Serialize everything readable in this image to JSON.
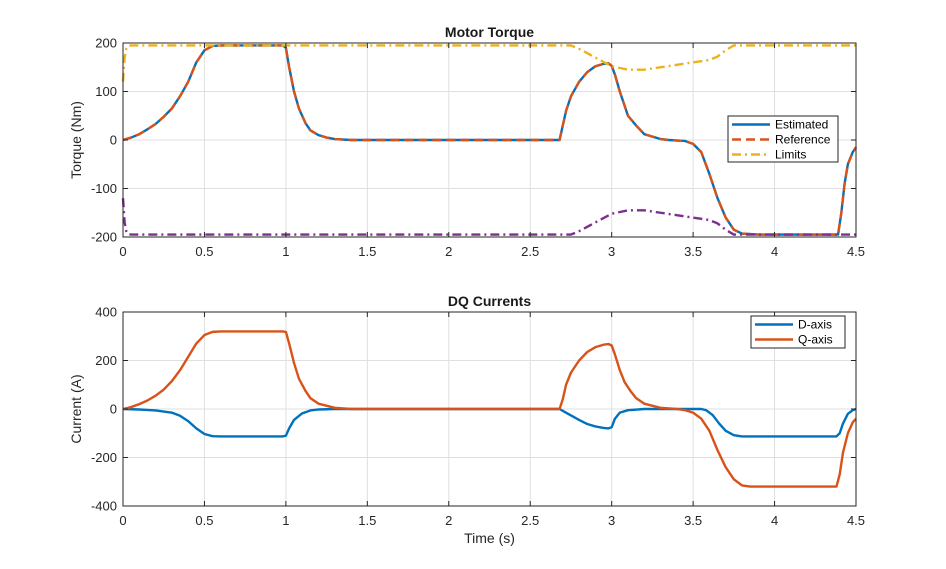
{
  "colors": {
    "estimated": "#0072BD",
    "reference": "#D95319",
    "limits": "#EDB120",
    "lower_limit": "#7E2F8E",
    "d_axis": "#0072BD",
    "q_axis": "#D95319",
    "grid": "#dfdfdf",
    "axes": "#262626"
  },
  "chart_data": [
    {
      "type": "line",
      "title": "Motor Torque",
      "xlabel": "",
      "ylabel": "Torque (Nm)",
      "xlim": [
        0,
        4.5
      ],
      "ylim": [
        -200,
        200
      ],
      "xticks": [
        0,
        0.5,
        1,
        1.5,
        2,
        2.5,
        3,
        3.5,
        4,
        4.5
      ],
      "xtick_labels": [
        "0",
        "0.5",
        "1",
        "1.5",
        "2",
        "2.5",
        "3",
        "3.5",
        "4",
        "4.5"
      ],
      "yticks": [
        -200,
        -100,
        0,
        100,
        200
      ],
      "ytick_labels": [
        "-200",
        "-100",
        "0",
        "100",
        "200"
      ],
      "grid": true,
      "legend_position": "right",
      "legend": [
        "Estimated",
        "Reference",
        "Limits"
      ],
      "series": [
        {
          "name": "Estimated",
          "style": "solid",
          "color_key": "estimated",
          "points": [
            [
              0,
              0
            ],
            [
              0.05,
              5
            ],
            [
              0.1,
              12
            ],
            [
              0.15,
              22
            ],
            [
              0.2,
              33
            ],
            [
              0.25,
              48
            ],
            [
              0.3,
              65
            ],
            [
              0.35,
              90
            ],
            [
              0.4,
              120
            ],
            [
              0.45,
              160
            ],
            [
              0.5,
              185
            ],
            [
              0.55,
              194
            ],
            [
              0.6,
              195
            ],
            [
              0.8,
              195
            ],
            [
              0.98,
              195
            ],
            [
              1.0,
              190
            ],
            [
              1.02,
              150
            ],
            [
              1.05,
              100
            ],
            [
              1.08,
              65
            ],
            [
              1.12,
              35
            ],
            [
              1.15,
              20
            ],
            [
              1.2,
              10
            ],
            [
              1.25,
              5
            ],
            [
              1.3,
              2
            ],
            [
              1.4,
              0
            ],
            [
              2.68,
              0
            ],
            [
              2.7,
              30
            ],
            [
              2.72,
              60
            ],
            [
              2.75,
              90
            ],
            [
              2.8,
              120
            ],
            [
              2.85,
              140
            ],
            [
              2.9,
              152
            ],
            [
              2.95,
              157
            ],
            [
              2.98,
              158
            ],
            [
              3.0,
              153
            ],
            [
              3.02,
              135
            ],
            [
              3.05,
              100
            ],
            [
              3.08,
              70
            ],
            [
              3.1,
              50
            ],
            [
              3.15,
              30
            ],
            [
              3.2,
              12
            ],
            [
              3.3,
              2
            ],
            [
              3.35,
              0
            ],
            [
              3.45,
              -2
            ],
            [
              3.5,
              -8
            ],
            [
              3.55,
              -25
            ],
            [
              3.6,
              -70
            ],
            [
              3.65,
              -120
            ],
            [
              3.7,
              -160
            ],
            [
              3.75,
              -185
            ],
            [
              3.8,
              -193
            ],
            [
              3.9,
              -195
            ],
            [
              4.39,
              -195
            ],
            [
              4.41,
              -150
            ],
            [
              4.43,
              -90
            ],
            [
              4.45,
              -50
            ],
            [
              4.48,
              -25
            ],
            [
              4.5,
              -15
            ]
          ]
        },
        {
          "name": "Reference",
          "style": "dashed",
          "color_key": "reference",
          "points": [
            [
              0,
              0
            ],
            [
              0.05,
              5
            ],
            [
              0.1,
              12
            ],
            [
              0.15,
              22
            ],
            [
              0.2,
              33
            ],
            [
              0.25,
              48
            ],
            [
              0.3,
              65
            ],
            [
              0.35,
              90
            ],
            [
              0.4,
              120
            ],
            [
              0.45,
              160
            ],
            [
              0.5,
              185
            ],
            [
              0.55,
              194
            ],
            [
              0.6,
              195
            ],
            [
              0.8,
              195
            ],
            [
              0.98,
              195
            ],
            [
              1.0,
              190
            ],
            [
              1.02,
              150
            ],
            [
              1.05,
              100
            ],
            [
              1.08,
              65
            ],
            [
              1.12,
              35
            ],
            [
              1.15,
              20
            ],
            [
              1.2,
              10
            ],
            [
              1.25,
              5
            ],
            [
              1.3,
              2
            ],
            [
              1.4,
              0
            ],
            [
              2.68,
              0
            ],
            [
              2.7,
              30
            ],
            [
              2.72,
              60
            ],
            [
              2.75,
              90
            ],
            [
              2.8,
              120
            ],
            [
              2.85,
              140
            ],
            [
              2.9,
              152
            ],
            [
              2.95,
              157
            ],
            [
              2.98,
              158
            ],
            [
              3.0,
              153
            ],
            [
              3.02,
              135
            ],
            [
              3.05,
              100
            ],
            [
              3.08,
              70
            ],
            [
              3.1,
              50
            ],
            [
              3.15,
              30
            ],
            [
              3.2,
              12
            ],
            [
              3.3,
              2
            ],
            [
              3.35,
              0
            ],
            [
              3.45,
              -2
            ],
            [
              3.5,
              -8
            ],
            [
              3.55,
              -25
            ],
            [
              3.6,
              -70
            ],
            [
              3.65,
              -120
            ],
            [
              3.7,
              -160
            ],
            [
              3.75,
              -185
            ],
            [
              3.8,
              -193
            ],
            [
              3.9,
              -195
            ],
            [
              4.39,
              -195
            ],
            [
              4.41,
              -150
            ],
            [
              4.43,
              -90
            ],
            [
              4.45,
              -50
            ],
            [
              4.48,
              -25
            ],
            [
              4.5,
              -15
            ]
          ]
        },
        {
          "name": "Limits",
          "style": "dashdot",
          "color_key": "limits",
          "points": [
            [
              0,
              120
            ],
            [
              0.01,
              170
            ],
            [
              0.02,
              188
            ],
            [
              0.03,
              194
            ],
            [
              0.05,
              195
            ],
            [
              2.75,
              195
            ],
            [
              2.8,
              188
            ],
            [
              2.9,
              170
            ],
            [
              3.0,
              152
            ],
            [
              3.1,
              145
            ],
            [
              3.2,
              145
            ],
            [
              3.3,
              150
            ],
            [
              3.4,
              155
            ],
            [
              3.5,
              160
            ],
            [
              3.6,
              165
            ],
            [
              3.65,
              172
            ],
            [
              3.7,
              185
            ],
            [
              3.75,
              195
            ],
            [
              4.5,
              195
            ]
          ]
        },
        {
          "name": "",
          "style": "dashdot",
          "color_key": "lower_limit",
          "points": [
            [
              0,
              -120
            ],
            [
              0.01,
              -170
            ],
            [
              0.02,
              -188
            ],
            [
              0.03,
              -194
            ],
            [
              0.05,
              -195
            ],
            [
              2.75,
              -195
            ],
            [
              2.8,
              -188
            ],
            [
              2.9,
              -170
            ],
            [
              3.0,
              -152
            ],
            [
              3.1,
              -145
            ],
            [
              3.2,
              -145
            ],
            [
              3.3,
              -150
            ],
            [
              3.4,
              -155
            ],
            [
              3.5,
              -160
            ],
            [
              3.6,
              -165
            ],
            [
              3.65,
              -172
            ],
            [
              3.7,
              -185
            ],
            [
              3.75,
              -195
            ],
            [
              4.5,
              -195
            ]
          ]
        }
      ]
    },
    {
      "type": "line",
      "title": "DQ Currents",
      "xlabel": "Time (s)",
      "ylabel": "Current (A)",
      "xlim": [
        0,
        4.5
      ],
      "ylim": [
        -400,
        400
      ],
      "xticks": [
        0,
        0.5,
        1,
        1.5,
        2,
        2.5,
        3,
        3.5,
        4,
        4.5
      ],
      "xtick_labels": [
        "0",
        "0.5",
        "1",
        "1.5",
        "2",
        "2.5",
        "3",
        "3.5",
        "4",
        "4.5"
      ],
      "yticks": [
        -400,
        -200,
        0,
        200,
        400
      ],
      "ytick_labels": [
        "-400",
        "-200",
        "0",
        "200",
        "400"
      ],
      "grid": true,
      "legend_position": "top-right",
      "legend": [
        "D-axis",
        "Q-axis"
      ],
      "series": [
        {
          "name": "D-axis",
          "style": "solid",
          "color_key": "d_axis",
          "points": [
            [
              0,
              0
            ],
            [
              0.1,
              -2
            ],
            [
              0.2,
              -6
            ],
            [
              0.3,
              -15
            ],
            [
              0.35,
              -28
            ],
            [
              0.4,
              -50
            ],
            [
              0.45,
              -80
            ],
            [
              0.5,
              -103
            ],
            [
              0.55,
              -112
            ],
            [
              0.6,
              -113
            ],
            [
              0.98,
              -113
            ],
            [
              1.0,
              -110
            ],
            [
              1.02,
              -80
            ],
            [
              1.05,
              -45
            ],
            [
              1.1,
              -18
            ],
            [
              1.15,
              -6
            ],
            [
              1.2,
              -2
            ],
            [
              1.3,
              0
            ],
            [
              2.68,
              0
            ],
            [
              2.72,
              -15
            ],
            [
              2.8,
              -45
            ],
            [
              2.85,
              -62
            ],
            [
              2.9,
              -72
            ],
            [
              2.95,
              -78
            ],
            [
              2.98,
              -80
            ],
            [
              3.0,
              -75
            ],
            [
              3.02,
              -40
            ],
            [
              3.05,
              -15
            ],
            [
              3.1,
              -5
            ],
            [
              3.2,
              0
            ],
            [
              3.55,
              0
            ],
            [
              3.58,
              -5
            ],
            [
              3.62,
              -25
            ],
            [
              3.66,
              -60
            ],
            [
              3.7,
              -90
            ],
            [
              3.75,
              -108
            ],
            [
              3.8,
              -113
            ],
            [
              4.38,
              -113
            ],
            [
              4.4,
              -100
            ],
            [
              4.42,
              -60
            ],
            [
              4.45,
              -20
            ],
            [
              4.48,
              -5
            ],
            [
              4.5,
              0
            ]
          ]
        },
        {
          "name": "Q-axis",
          "style": "solid",
          "color_key": "q_axis",
          "points": [
            [
              0,
              0
            ],
            [
              0.05,
              8
            ],
            [
              0.1,
              20
            ],
            [
              0.15,
              35
            ],
            [
              0.2,
              55
            ],
            [
              0.25,
              80
            ],
            [
              0.3,
              115
            ],
            [
              0.35,
              160
            ],
            [
              0.4,
              215
            ],
            [
              0.45,
              270
            ],
            [
              0.5,
              305
            ],
            [
              0.55,
              318
            ],
            [
              0.6,
              320
            ],
            [
              0.98,
              320
            ],
            [
              1.0,
              318
            ],
            [
              1.02,
              270
            ],
            [
              1.05,
              190
            ],
            [
              1.08,
              125
            ],
            [
              1.12,
              75
            ],
            [
              1.15,
              45
            ],
            [
              1.2,
              22
            ],
            [
              1.3,
              5
            ],
            [
              1.4,
              0
            ],
            [
              2.68,
              0
            ],
            [
              2.7,
              40
            ],
            [
              2.72,
              100
            ],
            [
              2.75,
              150
            ],
            [
              2.8,
              200
            ],
            [
              2.85,
              235
            ],
            [
              2.9,
              255
            ],
            [
              2.95,
              265
            ],
            [
              2.98,
              268
            ],
            [
              3.0,
              262
            ],
            [
              3.02,
              225
            ],
            [
              3.05,
              160
            ],
            [
              3.08,
              110
            ],
            [
              3.12,
              70
            ],
            [
              3.15,
              45
            ],
            [
              3.2,
              22
            ],
            [
              3.3,
              5
            ],
            [
              3.4,
              0
            ],
            [
              3.45,
              -5
            ],
            [
              3.5,
              -15
            ],
            [
              3.55,
              -40
            ],
            [
              3.6,
              -90
            ],
            [
              3.65,
              -170
            ],
            [
              3.7,
              -240
            ],
            [
              3.75,
              -290
            ],
            [
              3.8,
              -315
            ],
            [
              3.85,
              -320
            ],
            [
              4.38,
              -320
            ],
            [
              4.4,
              -270
            ],
            [
              4.42,
              -180
            ],
            [
              4.45,
              -100
            ],
            [
              4.48,
              -55
            ],
            [
              4.5,
              -40
            ]
          ]
        }
      ]
    }
  ]
}
